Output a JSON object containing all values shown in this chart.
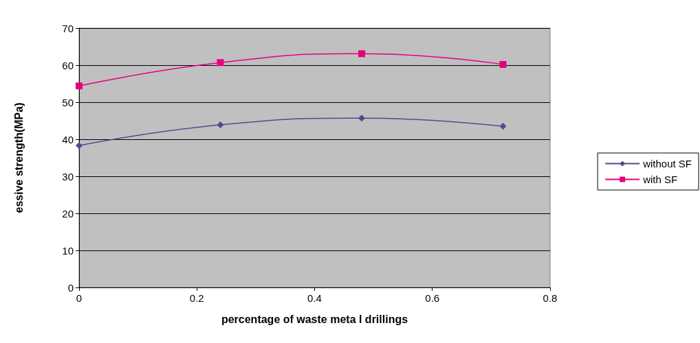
{
  "chart_data": {
    "type": "line",
    "xlabel": "percentage of waste meta l drillings",
    "ylabel": "essive strength(MPa)",
    "xlim": [
      0,
      0.8
    ],
    "xticks": [
      0,
      0.2,
      0.4,
      0.6,
      0.8
    ],
    "ylim": [
      0,
      70
    ],
    "yticks": [
      0,
      10,
      20,
      30,
      40,
      50,
      60,
      70
    ],
    "grid": "y",
    "legend": "right",
    "series": [
      {
        "name": "without SF",
        "color": "#4d4d8a",
        "marker": "diamond",
        "x": [
          0,
          0.24,
          0.48,
          0.72
        ],
        "values": [
          38.3,
          43.9,
          45.7,
          43.5
        ]
      },
      {
        "name": "with SF",
        "color": "#e6007e",
        "marker": "square",
        "x": [
          0,
          0.24,
          0.48,
          0.72
        ],
        "values": [
          54.4,
          60.7,
          63.1,
          60.2
        ]
      }
    ]
  }
}
